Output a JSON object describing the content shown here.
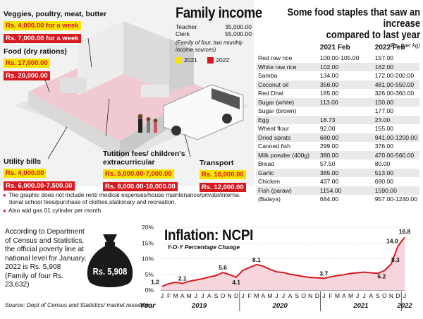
{
  "colors": {
    "yellow": "#f5e400",
    "red": "#d71920",
    "illus_bg": "#f2f2f2",
    "house_pink": "#f1c9d0"
  },
  "labels": {
    "veggies": {
      "title": "Veggies, poultry, meat, butter",
      "y2021": "Rs. 4,000.00 for a week",
      "y2022": "Rs. 7,000.00 for a week"
    },
    "food": {
      "title": "Food (dry rations)",
      "y2021": "Rs. 17,000.00",
      "y2022": "Rs. 20,000.00"
    },
    "utility": {
      "title": "Utility bills",
      "y2021": "Rs. 4,000.00",
      "y2022": "Rs. 6,000.00-7,500.00"
    },
    "tuition": {
      "title1": "Tutition fees/ children's",
      "title2": "extracurricular",
      "y2021": "Rs. 5,000.00-7,000.00",
      "y2022": "Rs. 8,000.00-10,000.00"
    },
    "transport": {
      "title": "Transport",
      "y2021": "Rs. 10,000.00",
      "y2022": "Rs. 12,000.00"
    }
  },
  "family_income": {
    "title": "Family income",
    "rows": [
      {
        "label": "Teacher",
        "value": "35,000.00"
      },
      {
        "label": "Clerk",
        "value": "55,000.00"
      }
    ],
    "note": "(Family of four, two monthly income sources)",
    "legend": [
      "2021",
      "2022"
    ]
  },
  "notes": [
    "The graphic does not include rent/ medical expenses/house maintenance/private/interna-",
    "tional school fees/purchase of clothes,stationary and recreation.",
    "Also add gas 01 cylinder per month."
  ],
  "staples": {
    "title1": "Some food staples that saw an increase",
    "title2": "compared to last year",
    "unit": "(Rs. /per kg)",
    "headers": [
      "",
      "2021 Feb",
      "2022 Feb"
    ],
    "rows": [
      [
        "Red raw rice",
        "100.00-105.00",
        "157.00"
      ],
      [
        "White raw rice",
        "102.00",
        "162.00"
      ],
      [
        "Samba",
        "134.00",
        "172.00-200.00"
      ],
      [
        "Coconut oil",
        "356.00",
        "481.00-550.00"
      ],
      [
        "Red Dhal",
        "185.00",
        "326.00-360.00"
      ],
      [
        "Sugar (white)",
        "113.00",
        "150.00"
      ],
      [
        "Sugar (brown)",
        "",
        "177.00"
      ],
      [
        "Egg",
        "18.73",
        "23.00"
      ],
      [
        "Wheat flour",
        "92.00",
        "155.00"
      ],
      [
        "Dried sprats",
        "680.00",
        "941.00-1200.00"
      ],
      [
        "Canned fish",
        "299.00",
        "376.00"
      ],
      [
        "Milk powder (400g)",
        "380.00",
        "470.00-560.00"
      ],
      [
        "Bread",
        "57.50",
        "80.00"
      ],
      [
        "Garlic",
        "385.00",
        "513.00"
      ],
      [
        "Chicken",
        "437.00",
        "690.00"
      ],
      [
        "Fish (paraw)",
        "1154.00",
        "1590.00"
      ],
      [
        "(Balaya)",
        "684.00",
        "957.00-1240.00"
      ]
    ]
  },
  "poverty": {
    "lines": [
      "According to Department",
      "of Census and Statistics,",
      "the official poverty line at",
      "national level for January,",
      "2022 is Rs. 5,908",
      "(Family of four Rs.",
      "23,632)"
    ],
    "bag_label": "Rs. 5,908"
  },
  "source": "Source: Dept of Census and Statistics/ market research",
  "chart_data": {
    "type": "line",
    "title": "Inflation: NCPI",
    "subtitle": "Y-O-Y Percentage Change",
    "xlabel": "Year",
    "ylabel": "",
    "ylim": [
      0,
      20
    ],
    "yticks": [
      "0%",
      "5%",
      "10%",
      "15%",
      "20%"
    ],
    "month_labels": [
      "J",
      "F",
      "M",
      "A",
      "M",
      "J",
      "J",
      "A",
      "S",
      "O",
      "N",
      "D",
      "J",
      "F",
      "M",
      "A",
      "M",
      "J",
      "J",
      "A",
      "S",
      "O",
      "N",
      "D",
      "J",
      "F",
      "M",
      "A",
      "M",
      "J",
      "J",
      "A",
      "S",
      "O",
      "N",
      "D",
      "J"
    ],
    "years": [
      {
        "label": "2019",
        "month_index": 5.5
      },
      {
        "label": "2020",
        "month_index": 17.5
      },
      {
        "label": "2021",
        "month_index": 29.5
      },
      {
        "label": "2022",
        "month_index": 36
      }
    ],
    "series": [
      {
        "values": [
          1.2,
          2.0,
          2.5,
          2.1,
          2.8,
          3.2,
          3.6,
          4.2,
          4.6,
          5.6,
          4.9,
          4.1,
          6.3,
          7.2,
          8.1,
          7.6,
          6.6,
          5.8,
          5.6,
          5.0,
          4.7,
          4.3,
          4.0,
          3.9,
          3.7,
          4.2,
          4.6,
          4.9,
          5.3,
          5.5,
          5.7,
          5.5,
          5.3,
          6.2,
          8.3,
          14.0,
          16.8
        ]
      }
    ],
    "data_labels": [
      {
        "index": 0,
        "text": "1.2"
      },
      {
        "index": 3,
        "text": "2.1"
      },
      {
        "index": 9,
        "text": "5.6"
      },
      {
        "index": 11,
        "text": "4.1"
      },
      {
        "index": 14,
        "text": "8.1"
      },
      {
        "index": 24,
        "text": "3.7"
      },
      {
        "index": 33,
        "text": "6.2"
      },
      {
        "index": 34,
        "text": "8.3"
      },
      {
        "index": 35,
        "text": "14.0"
      },
      {
        "index": 36,
        "text": "16.8"
      }
    ]
  }
}
